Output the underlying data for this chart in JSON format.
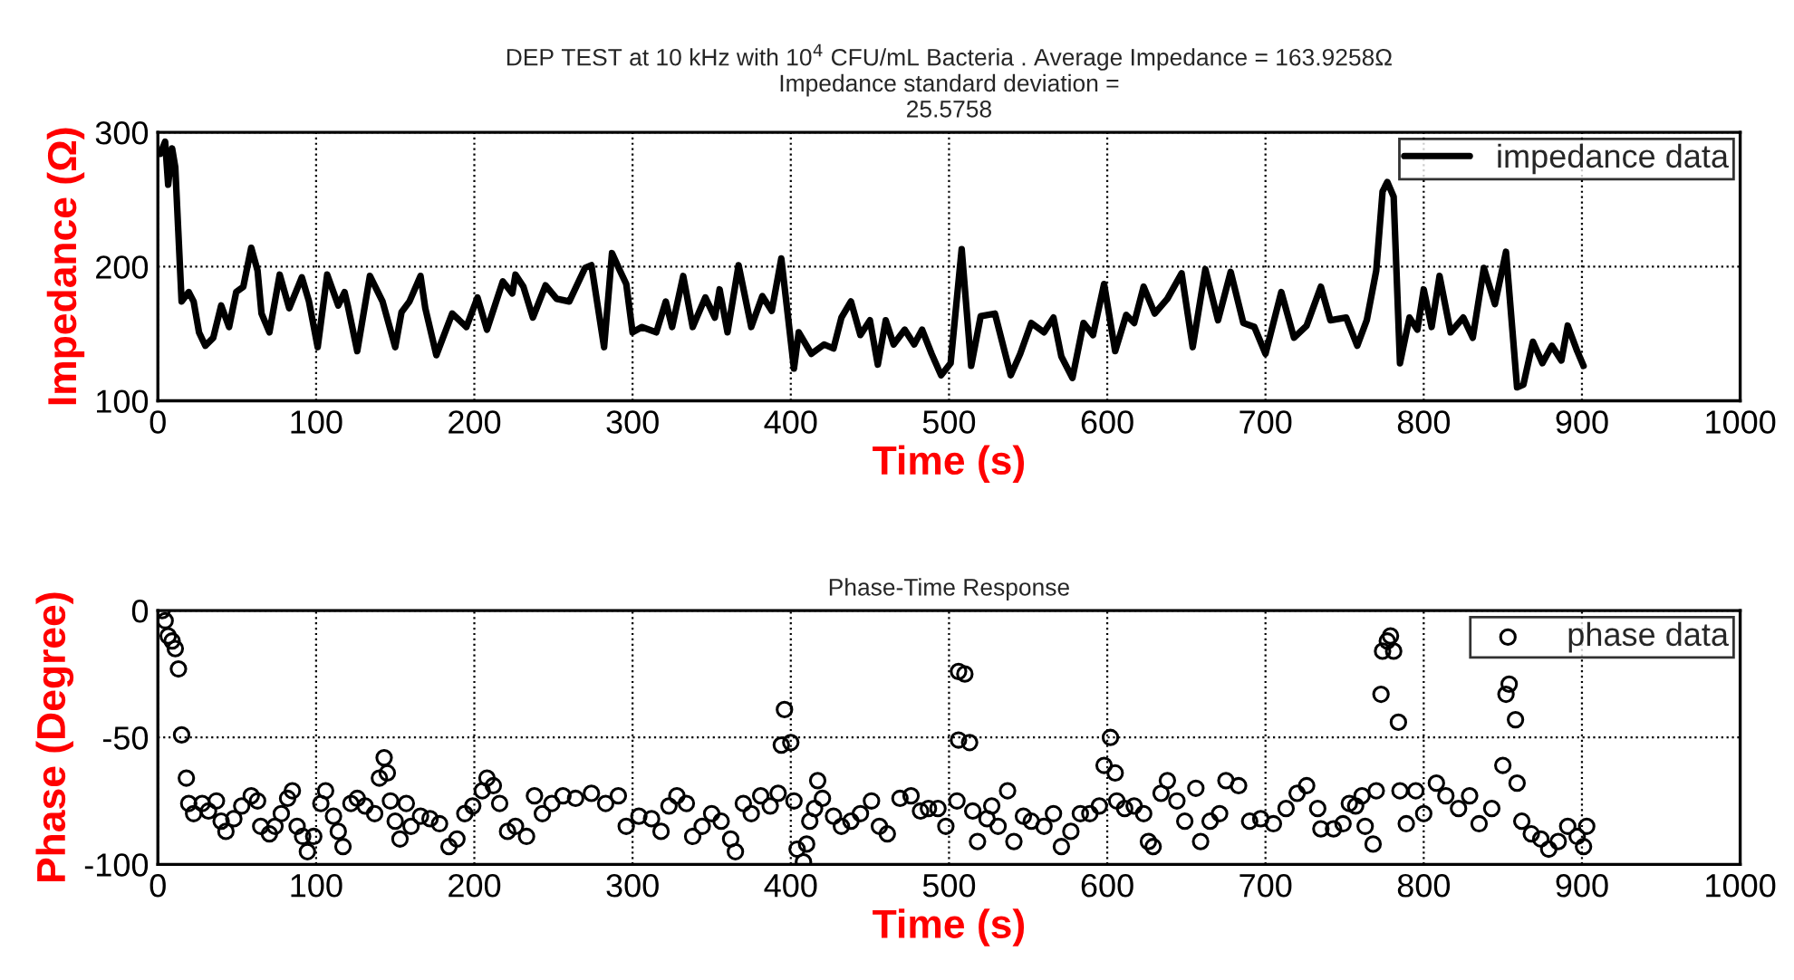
{
  "chart_data": [
    {
      "type": "line",
      "title": "DEP TEST at 10 kHz with 10$^{4}$ CFU/mL Bacteria . Average Impedance = 163.9258Ω\nImpedance standard deviation =\n25.5758",
      "xlabel": "Time (s)",
      "ylabel": "Impedance (Ω)",
      "xlim": [
        0,
        1000
      ],
      "xticks": [
        0,
        100,
        200,
        300,
        400,
        500,
        600,
        700,
        800,
        900,
        1000
      ],
      "ylim": [
        100,
        300
      ],
      "yticks": [
        100,
        200,
        300
      ],
      "grid": true,
      "legend": "top right",
      "line_style": "solid",
      "marker": "none",
      "series": [
        {
          "name": "impedance data",
          "color": "#000000",
          "x": [
            1.5,
            4.6,
            6.5,
            9,
            11,
            15,
            19.5,
            22.6,
            26,
            30,
            35,
            40,
            45,
            49.5,
            54,
            59,
            63,
            65.5,
            70.5,
            77,
            83,
            91,
            95.5,
            101,
            107,
            114,
            118,
            120,
            126,
            134,
            142,
            150,
            154,
            159,
            166,
            169,
            176,
            186,
            195,
            202,
            208,
            218,
            224,
            226,
            231,
            237,
            245,
            252,
            260,
            270,
            274,
            282,
            287,
            292,
            296,
            300,
            306,
            315,
            321,
            325,
            332,
            338,
            346,
            352,
            355,
            360,
            367,
            375,
            382,
            388,
            394,
            402,
            405,
            413,
            421,
            427,
            432,
            438,
            444,
            450,
            455,
            460,
            465,
            472,
            478,
            483,
            489,
            495,
            501,
            508,
            514,
            520,
            529,
            539,
            545,
            552,
            560,
            566,
            571,
            578,
            585,
            591,
            598,
            605,
            612,
            617,
            623,
            630,
            638,
            647,
            654,
            662,
            670,
            678,
            686,
            693,
            700,
            710,
            718,
            726,
            735,
            741,
            751,
            758,
            764,
            770,
            774,
            777,
            781,
            785,
            791,
            796,
            800,
            805,
            810,
            817,
            825,
            831,
            838,
            845,
            852,
            859,
            863,
            869,
            875,
            881,
            887,
            891,
            897,
            901
          ],
          "values": [
            284,
            293,
            261,
            288,
            274,
            174,
            181,
            174,
            151,
            141,
            147,
            171,
            155,
            181,
            185,
            214,
            197,
            165,
            151,
            194,
            169,
            192,
            174,
            140,
            194,
            171,
            181,
            171,
            137,
            193,
            174,
            140,
            166,
            174,
            193,
            169,
            134,
            165,
            155,
            177,
            153,
            189,
            180,
            194,
            185,
            162,
            186,
            176,
            174,
            199,
            201,
            140,
            210,
            197,
            187,
            151,
            155,
            151,
            174,
            155,
            193,
            155,
            177,
            162,
            183,
            151,
            201,
            155,
            178,
            167,
            206,
            124,
            151,
            135,
            142,
            139,
            162,
            174,
            149,
            160,
            127,
            160,
            142,
            153,
            142,
            153,
            135,
            119,
            128,
            213,
            126,
            163,
            165,
            119,
            135,
            158,
            151,
            162,
            133,
            117,
            158,
            149,
            187,
            137,
            164,
            158,
            185,
            165,
            176,
            195,
            140,
            198,
            160,
            196,
            158,
            155,
            135,
            181,
            147,
            156,
            185,
            160,
            162,
            141,
            160,
            197,
            256,
            263,
            252,
            128,
            162,
            153,
            183,
            155,
            193,
            151,
            162,
            147,
            199,
            172,
            211,
            110,
            112,
            144,
            128,
            141,
            130,
            156,
            137,
            126
          ]
        }
      ]
    },
    {
      "type": "scatter",
      "title": "Phase-Time Response",
      "xlabel": "Time (s)",
      "ylabel": "Phase (Degree)",
      "xlim": [
        0,
        1000
      ],
      "xticks": [
        0,
        100,
        200,
        300,
        400,
        500,
        600,
        700,
        800,
        900,
        1000
      ],
      "ylim": [
        -100,
        0
      ],
      "yticks": [
        -100,
        -50,
        0
      ],
      "grid": true,
      "legend": "top right",
      "marker": "circle",
      "series": [
        {
          "name": "phase data",
          "color": "#000000",
          "x": [
            2.7,
            4.6,
            6.5,
            9,
            11,
            13,
            15,
            18,
            19.5,
            22.6,
            28,
            32,
            37,
            40,
            43,
            48,
            53,
            59,
            63,
            65,
            70.5,
            74,
            78,
            82,
            85,
            88,
            91.5,
            94.5,
            98.5,
            103,
            106,
            111,
            114,
            117,
            122,
            126,
            131,
            137,
            140,
            143,
            145,
            147,
            150,
            153,
            157,
            160,
            166,
            172,
            178,
            184,
            189,
            194,
            199,
            205,
            208,
            212,
            216,
            221,
            226,
            233,
            238,
            243,
            249,
            256,
            264,
            274,
            283,
            291,
            296,
            304,
            312,
            318,
            323,
            328,
            334,
            338,
            344,
            350,
            356,
            362,
            365,
            370,
            375,
            381,
            387,
            392,
            394,
            396,
            400,
            402,
            404,
            408,
            410,
            412,
            415,
            417,
            420,
            427,
            432,
            438,
            444,
            451,
            456,
            461,
            469,
            476,
            482,
            487,
            493,
            498,
            505,
            506,
            510,
            506,
            513,
            515,
            518,
            524,
            527,
            531,
            537,
            541,
            547,
            552,
            560,
            566,
            571,
            577,
            583,
            589,
            595,
            598,
            602,
            605,
            606,
            611,
            617,
            623,
            626,
            629,
            634,
            638,
            644,
            649,
            656,
            659,
            665,
            671,
            675,
            683,
            690,
            697,
            705,
            713,
            720,
            726,
            733,
            735,
            743,
            749,
            753,
            757,
            761,
            763,
            768,
            770,
            773,
            774,
            777,
            779,
            781,
            784,
            785,
            789,
            795,
            800,
            808,
            814,
            822,
            829,
            835,
            843,
            850,
            852,
            854,
            858,
            859,
            862,
            868,
            874,
            879,
            885,
            891,
            897,
            901,
            903
          ],
          "values": [
            0,
            -4,
            -10,
            -12,
            -15,
            -23,
            -49,
            -66,
            -76,
            -80,
            -76,
            -79,
            -75,
            -83,
            -87,
            -82,
            -77,
            -73,
            -75,
            -85,
            -88,
            -85,
            -80,
            -74,
            -71,
            -85,
            -89,
            -95,
            -89,
            -76,
            -71,
            -81,
            -87,
            -93,
            -76,
            -74,
            -77,
            -80,
            -66,
            -58,
            -64,
            -75,
            -83,
            -90,
            -76,
            -85,
            -81,
            -82,
            -84,
            -93,
            -90,
            -80,
            -77,
            -71,
            -66,
            -69,
            -76,
            -87,
            -85,
            -89,
            -73,
            -80,
            -76,
            -73,
            -74,
            -72,
            -76,
            -73,
            -85,
            -81,
            -82,
            -87,
            -77,
            -73,
            -76,
            -89,
            -85,
            -80,
            -83,
            -90,
            -95,
            -76,
            -80,
            -73,
            -77,
            -72,
            -53,
            -39,
            -52,
            -75,
            -94,
            -99,
            -92,
            -83,
            -78,
            -67,
            -74,
            -81,
            -85,
            -83,
            -80,
            -75,
            -85,
            -88,
            -74,
            -73,
            -79,
            -78,
            -78,
            -85,
            -75,
            -24,
            -25,
            -51,
            -52,
            -79,
            -91,
            -82,
            -77,
            -85,
            -71,
            -91,
            -81,
            -83,
            -85,
            -80,
            -93,
            -87,
            -80,
            -80,
            -77,
            -61,
            -50,
            -64,
            -75,
            -78,
            -77,
            -80,
            -91,
            -93,
            -72,
            -67,
            -75,
            -83,
            -70,
            -91,
            -83,
            -80,
            -67,
            -69,
            -83,
            -82,
            -84,
            -78,
            -72,
            -69,
            -78,
            -86,
            -86,
            -84,
            -76,
            -77,
            -73,
            -85,
            -92,
            -71,
            -33,
            -16,
            -12,
            -10,
            -16,
            -44,
            -71,
            -84,
            -71,
            -80,
            -68,
            -73,
            -78,
            -73,
            -84,
            -78,
            -61,
            -33,
            -29,
            -43,
            -68,
            -83,
            -88,
            -90,
            -94,
            -91,
            -85,
            -89,
            -93,
            -85
          ]
        }
      ]
    }
  ]
}
